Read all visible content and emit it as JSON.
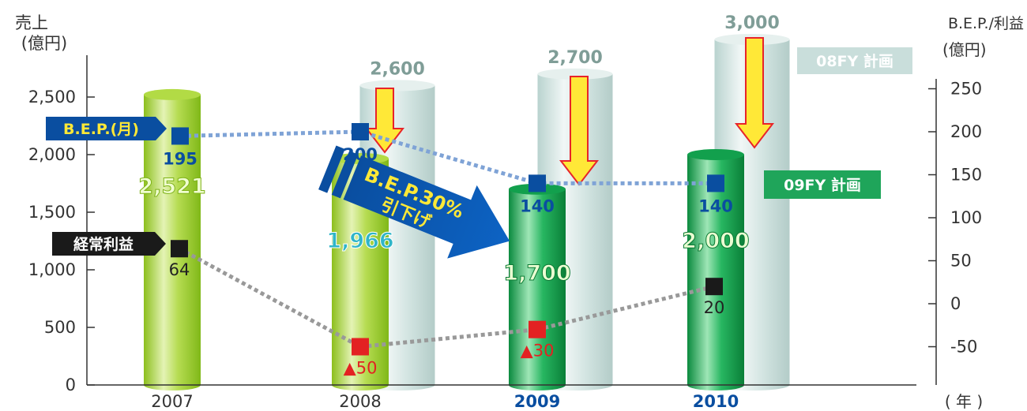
{
  "chart_data": {
    "type": "bar",
    "title": "",
    "xlabel": "( 年 )",
    "ylabel_left": "売上\n(億円)",
    "ylabel_right": "B.E.P./利益\n(億円)",
    "categories": [
      "2007",
      "2008",
      "2009",
      "2010"
    ],
    "ylim_left": [
      0,
      2750
    ],
    "yticks_left": [
      "0",
      "500",
      "1,000",
      "1,500",
      "2,000",
      "2,500"
    ],
    "ylim_right": [
      -100,
      300
    ],
    "yticks_right": [
      "-50",
      "0",
      "50",
      "100",
      "150",
      "200",
      "250"
    ],
    "grid": false,
    "series": [
      {
        "name": "08FY 計画",
        "axis": "left",
        "values": [
          null,
          2600,
          2700,
          3000
        ],
        "labels": [
          "",
          "2,600",
          "2,700",
          "3,000"
        ],
        "color": "#c9dedb"
      },
      {
        "name": "",
        "axis": "left",
        "values": [
          2521,
          1966,
          1700,
          2000
        ],
        "labels": [
          "2,521",
          "1,966",
          "1,700",
          "2,000"
        ],
        "colors": [
          "#a6d23a",
          "#a6d23a",
          "#1fa55a",
          "#1fa55a"
        ]
      },
      {
        "name": "B.E.P.(月)",
        "axis": "right",
        "type": "line",
        "values": [
          195,
          200,
          140,
          140
        ],
        "labels": [
          "195",
          "200",
          "140",
          "140"
        ],
        "color": "#0a4ea0"
      },
      {
        "name": "経常利益",
        "axis": "right",
        "type": "line",
        "values": [
          64,
          -50,
          -30,
          20
        ],
        "labels": [
          "64",
          "▲50",
          "▲30",
          "20"
        ],
        "marker_colors": [
          "#1a1a1a",
          "#e32222",
          "#e32222",
          "#1a1a1a"
        ]
      }
    ],
    "legend": {
      "plan08": "08FY 計画",
      "plan09": "09FY 計画",
      "bep": "B.E.P.(月)",
      "profit": "経常利益"
    },
    "annotations": {
      "bep_reduction_line1": "B.E.P.30%",
      "bep_reduction_line2": "引下げ"
    },
    "colors": {
      "plan_bar": "#c9dedb",
      "plan_label": "#7f9d97",
      "light_green": "#a6d23a",
      "dark_green": "#1fa55a",
      "bep_blue": "#0a4ea0",
      "negative_red": "#e32222",
      "arrow_yellow": "#ffe837",
      "arrow_red": "#e8242a"
    }
  }
}
